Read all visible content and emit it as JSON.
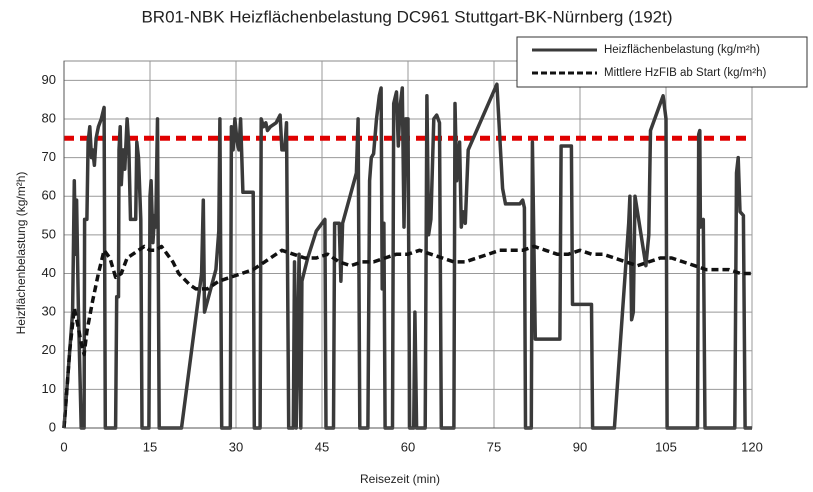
{
  "chart_data": {
    "type": "line",
    "title": "BR01-NBK Heizflächenbelastung DC961 Stuttgart-BK-Nürnberg (192t)",
    "x_label": "Reisezeit (min)",
    "y_label": "Heizflächenbelastung (kg/m²h)",
    "xlim": [
      0,
      120
    ],
    "xticks": [
      0,
      15,
      30,
      45,
      60,
      75,
      90,
      105,
      120
    ],
    "ylim": [
      0,
      95
    ],
    "yticks": [
      0,
      10,
      20,
      30,
      40,
      50,
      60,
      70,
      80,
      90
    ],
    "grid": true,
    "legend": "top-right",
    "reference_line": {
      "value": 75,
      "color": "#e00000"
    },
    "series": [
      {
        "name": "Heizflächenbelastung (kg/m²h)",
        "color": "#3a3a3a",
        "style": "solid",
        "x": [
          0,
          1.5,
          1.8,
          2,
          2.2,
          2.5,
          3,
          3.5,
          3.6,
          4,
          4.2,
          4.5,
          4.8,
          5,
          5.3,
          5.6,
          6,
          6.5,
          7,
          7.2,
          9,
          9.2,
          9.5,
          9.6,
          9.8,
          10,
          10.3,
          10.6,
          11,
          11.3,
          11.6,
          12.5,
          12.7,
          13,
          13.4,
          13.6,
          14.8,
          15,
          15.2,
          15.5,
          15.8,
          16,
          16.3,
          16.6,
          20.5,
          24,
          24.3,
          24.5,
          26.5,
          27,
          27.2,
          27.5,
          29,
          29.2,
          29.5,
          29.8,
          30.2,
          30.5,
          30.8,
          31.2,
          33,
          33.2,
          34.2,
          34.4,
          34.8,
          35.2,
          35.5,
          36,
          37,
          37.7,
          38,
          38.5,
          38.8,
          39.2,
          40,
          40.2,
          40.5,
          41,
          41.3,
          41.5,
          42.5,
          44,
          45.5,
          45.7,
          47,
          47.2,
          48,
          48.3,
          48.6,
          51,
          51.3,
          51.6,
          53,
          53.3,
          53.6,
          54,
          54.5,
          55,
          55.3,
          55.5,
          55.8,
          56,
          57.3,
          57.5,
          58,
          58.3,
          58.6,
          59,
          59.3,
          59.6,
          60,
          60.3,
          61,
          61.2,
          61.5,
          63,
          63.3,
          63.6,
          64,
          64.5,
          65,
          65.5,
          65.8,
          68,
          68.2,
          68.5,
          69,
          69.3,
          69.6,
          70,
          70.5,
          75.5,
          76.5,
          77,
          79.5,
          80,
          80.3,
          80.5,
          81.5,
          81.7,
          82.2,
          86.5,
          86.7,
          88.5,
          88.7,
          92,
          92.2,
          96,
          98.5,
          98.7,
          99,
          99.3,
          99.6,
          101.5,
          102,
          102.3,
          104.5,
          105,
          105.2,
          110.5,
          110.7,
          110.9,
          111,
          111.5,
          111.8,
          117,
          117.3,
          117.6,
          117.9,
          118.5,
          118.8,
          120
        ],
        "values": [
          0,
          30,
          64,
          45,
          59,
          32,
          0,
          0,
          54,
          54,
          74,
          78,
          70,
          72,
          68,
          75,
          78,
          80,
          83,
          0,
          0,
          34,
          34,
          72,
          78,
          63,
          72,
          67,
          80,
          73,
          54,
          54,
          74,
          70,
          54,
          0,
          0,
          60,
          64,
          48,
          55,
          52,
          80,
          0,
          0,
          40,
          59,
          30,
          41,
          51,
          80,
          0,
          0,
          78,
          72,
          80,
          74,
          72,
          80,
          61,
          61,
          0,
          0,
          80,
          78,
          79,
          77,
          78,
          79,
          81,
          72,
          72,
          79,
          0,
          0,
          43,
          0,
          45,
          0,
          38,
          44,
          51,
          54,
          0,
          0,
          53,
          53,
          38,
          53,
          66,
          80,
          0,
          0,
          64,
          70,
          71,
          80,
          86,
          88,
          36,
          53,
          0,
          0,
          84,
          87,
          73,
          83,
          88,
          52,
          80,
          80,
          0,
          0,
          30,
          0,
          0,
          86,
          50,
          54,
          80,
          81,
          79,
          0,
          0,
          84,
          64,
          74,
          52,
          56,
          53,
          72,
          89,
          62,
          58,
          58,
          59,
          57,
          0,
          0,
          74,
          23,
          23,
          73,
          73,
          32,
          32,
          0,
          0,
          53,
          60,
          28,
          30,
          60,
          42,
          50,
          77,
          86,
          80,
          0,
          0,
          76,
          77,
          52,
          54,
          0,
          0,
          66,
          70,
          56,
          55,
          0,
          0
        ]
      },
      {
        "name": "Mittlere HzFIB ab Start (kg/m²h)",
        "color": "#111111",
        "style": "dashed",
        "x": [
          0,
          0.5,
          1,
          1.8,
          2.5,
          3,
          3.5,
          4,
          5,
          6,
          7,
          8,
          9,
          10,
          11,
          12,
          13,
          14,
          15,
          16,
          17,
          18,
          19,
          20,
          22,
          23,
          25,
          27,
          29,
          31,
          33,
          35,
          37,
          38,
          40,
          42,
          44,
          46,
          48,
          50,
          52,
          54,
          56,
          58,
          60,
          62,
          64,
          66,
          68,
          70,
          72,
          74,
          76,
          78,
          80,
          82,
          84,
          86,
          88,
          90,
          92,
          94,
          96,
          98,
          100,
          102,
          104,
          106,
          108,
          110,
          112,
          114,
          116,
          118,
          120
        ],
        "values": [
          0,
          10,
          20,
          31,
          26,
          22,
          19,
          25,
          33,
          40,
          46,
          44,
          39,
          40,
          44,
          45,
          46,
          47,
          46,
          46,
          47,
          45,
          43,
          40,
          37,
          36,
          36,
          38,
          39,
          40,
          41,
          43,
          45,
          46,
          45,
          44,
          44,
          45,
          43,
          42,
          43,
          43,
          44,
          45,
          45,
          46,
          45,
          44,
          43,
          43,
          44,
          45,
          46,
          46,
          46,
          47,
          46,
          45,
          45,
          46,
          45,
          45,
          44,
          43,
          42,
          43,
          44,
          44,
          43,
          42,
          41,
          41,
          41,
          40,
          40
        ]
      }
    ]
  }
}
